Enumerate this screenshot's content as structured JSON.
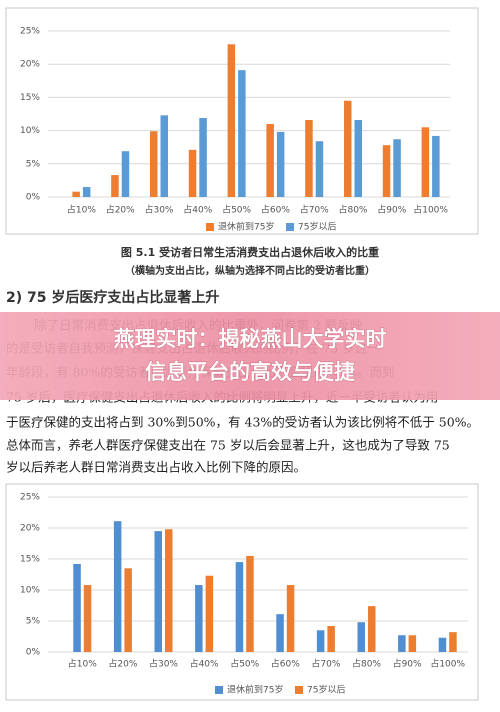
{
  "chart_data": [
    {
      "type": "bar",
      "title": "图 5.1 受访者日常生活消费支出占退休后收入的比重",
      "subtitle": "（横轴为支出占比，纵轴为选择不同占比的受访者比重）",
      "categories": [
        "占10%",
        "占20%",
        "占30%",
        "占40%",
        "占50%",
        "占60%",
        "占70%",
        "占80%",
        "占90%",
        "占100%"
      ],
      "series": [
        {
          "name": "退休前到75岁",
          "color": "#ed7d31",
          "values": [
            0.8,
            3.3,
            9.9,
            7.1,
            23.0,
            11.0,
            11.6,
            14.5,
            7.8,
            10.5
          ]
        },
        {
          "name": "75岁以后",
          "color": "#5b9bd5",
          "values": [
            1.5,
            6.9,
            12.3,
            11.9,
            19.1,
            9.8,
            8.4,
            11.6,
            8.7,
            9.2
          ]
        }
      ],
      "ylim": [
        0,
        25
      ],
      "yticks": [
        {
          "value": 0,
          "label": "0%"
        },
        {
          "value": 5,
          "label": "5%"
        },
        {
          "value": 10,
          "label": "10%"
        },
        {
          "value": 15,
          "label": "15%"
        },
        {
          "value": 20,
          "label": "20%"
        },
        {
          "value": 25,
          "label": "25%"
        }
      ],
      "grid": true,
      "legend": "bottom"
    },
    {
      "type": "bar",
      "categories": [
        "占10%",
        "占20%",
        "占30%",
        "占40%",
        "占50%",
        "占60%",
        "占70%",
        "占80%",
        "占90%",
        "占100%"
      ],
      "series": [
        {
          "name": "退休前到75岁",
          "color": "#4f8ed0",
          "values": [
            14.2,
            21.1,
            19.5,
            10.8,
            14.5,
            6.1,
            3.5,
            4.8,
            2.7,
            2.3
          ]
        },
        {
          "name": "75岁以后",
          "color": "#ed7d31",
          "values": [
            10.8,
            13.5,
            19.8,
            12.3,
            15.5,
            10.8,
            4.2,
            7.4,
            2.7,
            3.2
          ]
        }
      ],
      "ylim": [
        0,
        25
      ],
      "yticks": [
        {
          "value": 0,
          "label": "0%"
        },
        {
          "value": 5,
          "label": "5%"
        },
        {
          "value": 10,
          "label": "10%"
        },
        {
          "value": 15,
          "label": "15%"
        },
        {
          "value": 20,
          "label": "20%"
        },
        {
          "value": 25,
          "label": "25%"
        }
      ],
      "grid": true,
      "legend": "bottom"
    }
  ],
  "document": {
    "heading": "2) 75 岁后医疗支出占比显著上升",
    "paragraph": [
      "除了日常消费支出占退休后收入的比重外，问卷第 2 题反映",
      "的是受访者自我预测，保健支出占退休后收入的比例，在 75 岁这一",
      "年龄段，有 80%的受访者认为医疗保健支出占比不会超过 50%。而到",
      "75 岁后，医疗保健支出占退休后收入的比例将明显上升，近一半受访者认为用",
      "于医疗保健的支出将占到 30%到50%，有 43%的受访者认为该比例将不低于 50%。",
      "总体而言，养老人群医疗保健支出在 75 岁以后会显著上升，这也成为了导致 75",
      "岁以后养老人群日常消费支出占收入比例下降的原因。"
    ],
    "banner": [
      "燕理实时：揭秘燕山大学实时",
      "信息平台的高效与便捷"
    ]
  }
}
